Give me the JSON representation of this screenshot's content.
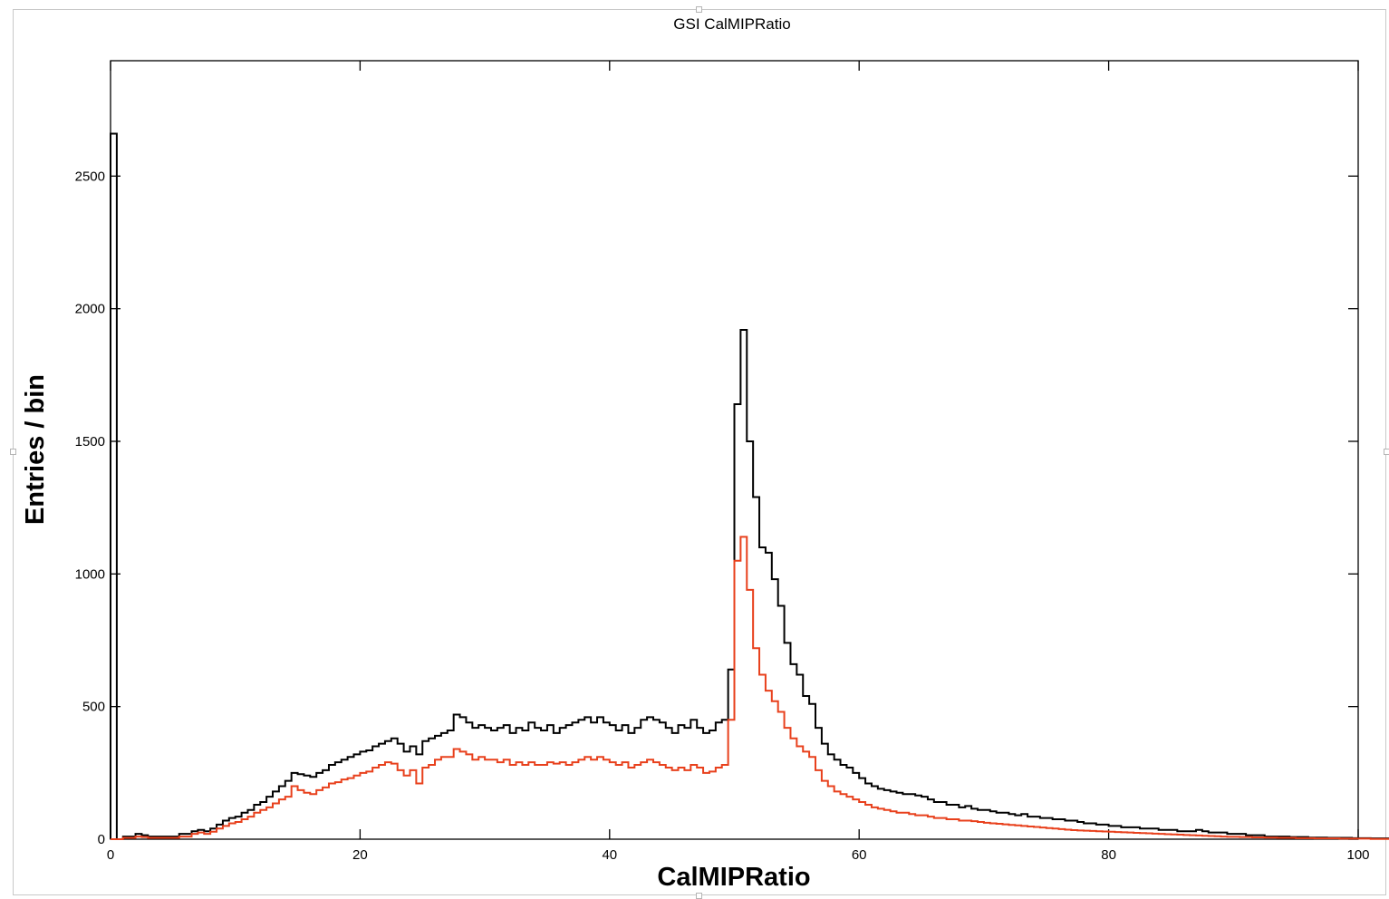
{
  "chart_data": {
    "type": "line",
    "title": "GSI CalMIPRatio",
    "xlabel": "CalMIPRatio",
    "ylabel": "Entries / bin",
    "xlim": [
      0,
      100
    ],
    "ylim": [
      0,
      2935
    ],
    "xticks": [
      0,
      20,
      40,
      60,
      80,
      100
    ],
    "yticks": [
      0,
      500,
      1000,
      1500,
      2000,
      2500
    ],
    "bin_width": 0.5,
    "grid": false,
    "legend": "none",
    "series": [
      {
        "color": "#000000",
        "y": [
          2660,
          0,
          10,
          10,
          20,
          15,
          10,
          10,
          10,
          10,
          10,
          20,
          20,
          30,
          35,
          30,
          40,
          55,
          70,
          80,
          85,
          100,
          110,
          130,
          140,
          160,
          180,
          200,
          220,
          250,
          245,
          240,
          235,
          250,
          260,
          280,
          290,
          300,
          310,
          320,
          330,
          335,
          350,
          360,
          370,
          380,
          360,
          330,
          350,
          320,
          370,
          380,
          390,
          400,
          410,
          470,
          460,
          440,
          420,
          430,
          420,
          410,
          420,
          430,
          400,
          420,
          410,
          440,
          420,
          410,
          430,
          400,
          420,
          430,
          440,
          450,
          460,
          440,
          460,
          440,
          430,
          410,
          430,
          400,
          420,
          450,
          460,
          450,
          440,
          420,
          400,
          430,
          420,
          450,
          420,
          400,
          410,
          440,
          450,
          640,
          1640,
          1920,
          1500,
          1290,
          1100,
          1080,
          980,
          880,
          740,
          660,
          620,
          540,
          510,
          420,
          360,
          320,
          300,
          280,
          270,
          250,
          230,
          210,
          200,
          190,
          185,
          180,
          175,
          170,
          170,
          165,
          160,
          150,
          140,
          140,
          130,
          130,
          120,
          125,
          115,
          110,
          110,
          105,
          100,
          100,
          95,
          90,
          95,
          85,
          85,
          80,
          80,
          75,
          75,
          70,
          70,
          65,
          60,
          60,
          55,
          55,
          50,
          50,
          45,
          45,
          45,
          40,
          40,
          40,
          35,
          35,
          35,
          30,
          30,
          30,
          35,
          30,
          25,
          25,
          25,
          20,
          20,
          20,
          15,
          15,
          15,
          10,
          10,
          10,
          10,
          8,
          8,
          8,
          6,
          6,
          6,
          5,
          5,
          5,
          5,
          4,
          4,
          4,
          3,
          3,
          3,
          2,
          2,
          2,
          2,
          1,
          1,
          1,
          0,
          10
        ]
      },
      {
        "color": "#e8401c",
        "y": [
          0,
          0,
          5,
          5,
          10,
          8,
          5,
          5,
          5,
          5,
          5,
          10,
          10,
          20,
          25,
          20,
          28,
          40,
          50,
          60,
          65,
          75,
          85,
          100,
          110,
          120,
          135,
          150,
          160,
          200,
          185,
          175,
          170,
          185,
          195,
          210,
          215,
          225,
          230,
          240,
          250,
          255,
          270,
          280,
          290,
          285,
          260,
          240,
          260,
          210,
          270,
          280,
          300,
          310,
          310,
          340,
          330,
          320,
          300,
          310,
          300,
          300,
          290,
          300,
          280,
          290,
          280,
          290,
          280,
          280,
          290,
          285,
          290,
          280,
          290,
          300,
          310,
          300,
          310,
          300,
          290,
          280,
          290,
          270,
          280,
          290,
          300,
          290,
          280,
          270,
          260,
          270,
          260,
          280,
          270,
          250,
          255,
          270,
          280,
          450,
          1050,
          1140,
          940,
          720,
          620,
          560,
          520,
          480,
          420,
          380,
          350,
          330,
          310,
          260,
          220,
          200,
          180,
          170,
          160,
          150,
          140,
          130,
          120,
          115,
          110,
          105,
          100,
          100,
          95,
          90,
          90,
          85,
          80,
          80,
          75,
          75,
          70,
          70,
          68,
          65,
          62,
          60,
          58,
          56,
          54,
          52,
          50,
          48,
          46,
          44,
          42,
          40,
          38,
          36,
          34,
          33,
          32,
          31,
          30,
          29,
          28,
          27,
          26,
          25,
          24,
          23,
          22,
          21,
          20,
          19,
          18,
          17,
          16,
          15,
          14,
          13,
          12,
          11,
          10,
          9,
          9,
          8,
          8,
          7,
          7,
          6,
          6,
          5,
          5,
          5,
          4,
          4,
          4,
          3,
          3,
          3,
          3,
          2,
          2,
          2,
          2,
          2,
          1,
          1,
          1,
          1,
          1,
          1,
          1,
          0,
          0,
          5
        ]
      }
    ]
  }
}
